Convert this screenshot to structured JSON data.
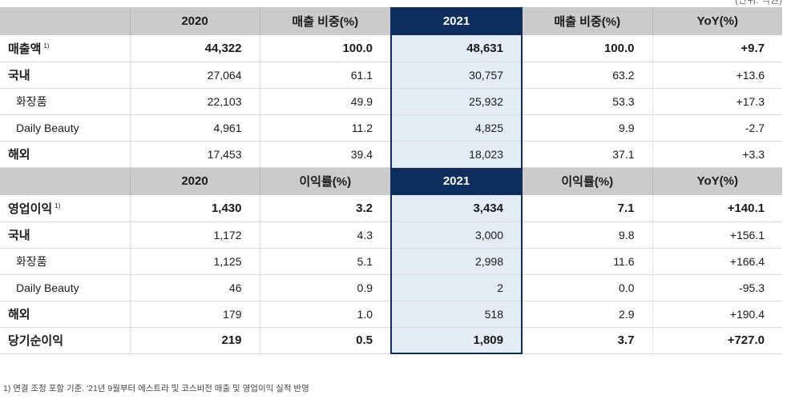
{
  "unit_note": "(단위: 억원)",
  "footnote": "1) 연결 조정 포함 기준. '21년 9월부터 에스트라 및 코스비전 매출 및 영업이익 실적 반영",
  "accent_color": "#0f2d5c",
  "highlight_color": "#e4ecf5",
  "revenue": {
    "header": {
      "label": "",
      "y2020": "2020",
      "share2020": "매출 비중(%)",
      "y2021": "2021",
      "share2021": "매출 비중(%)",
      "yoy": "YoY(%)"
    },
    "rows": [
      {
        "label": "매출액",
        "sup": "1)",
        "v2020": "44,322",
        "s2020": "100.0",
        "v2021": "48,631",
        "s2021": "100.0",
        "yoy": "+9.7"
      },
      {
        "label": "국내",
        "sup": "",
        "v2020": "27,064",
        "s2020": "61.1",
        "v2021": "30,757",
        "s2021": "63.2",
        "yoy": "+13.6"
      },
      {
        "label": "화장품",
        "sup": "",
        "v2020": "22,103",
        "s2020": "49.9",
        "v2021": "25,932",
        "s2021": "53.3",
        "yoy": "+17.3"
      },
      {
        "label": "Daily Beauty",
        "sup": "",
        "v2020": "4,961",
        "s2020": "11.2",
        "v2021": "4,825",
        "s2021": "9.9",
        "yoy": "-2.7"
      },
      {
        "label": "해외",
        "sup": "",
        "v2020": "17,453",
        "s2020": "39.4",
        "v2021": "18,023",
        "s2021": "37.1",
        "yoy": "+3.3"
      }
    ]
  },
  "profit": {
    "header": {
      "label": "",
      "y2020": "2020",
      "margin2020": "이익률(%)",
      "y2021": "2021",
      "margin2021": "이익률(%)",
      "yoy": "YoY(%)"
    },
    "rows": [
      {
        "label": "영업이익",
        "sup": "1)",
        "v2020": "1,430",
        "m2020": "3.2",
        "v2021": "3,434",
        "m2021": "7.1",
        "yoy": "+140.1"
      },
      {
        "label": "국내",
        "sup": "",
        "v2020": "1,172",
        "m2020": "4.3",
        "v2021": "3,000",
        "m2021": "9.8",
        "yoy": "+156.1"
      },
      {
        "label": "화장품",
        "sup": "",
        "v2020": "1,125",
        "m2020": "5.1",
        "v2021": "2,998",
        "m2021": "11.6",
        "yoy": "+166.4"
      },
      {
        "label": "Daily Beauty",
        "sup": "",
        "v2020": "46",
        "m2020": "0.9",
        "v2021": "2",
        "m2021": "0.0",
        "yoy": "-95.3"
      },
      {
        "label": "해외",
        "sup": "",
        "v2020": "179",
        "m2020": "1.0",
        "v2021": "518",
        "m2021": "2.9",
        "yoy": "+190.4"
      },
      {
        "label": "당기순이익",
        "sup": "",
        "v2020": "219",
        "m2020": "0.5",
        "v2021": "1,809",
        "m2021": "3.7",
        "yoy": "+727.0"
      }
    ]
  }
}
